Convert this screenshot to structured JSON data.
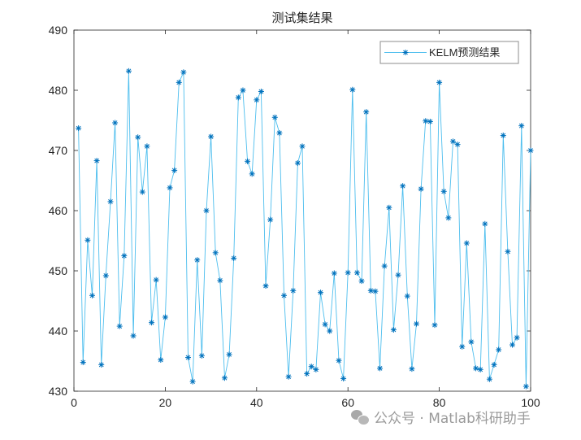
{
  "chart_data": {
    "type": "line",
    "title": "测试集结果",
    "xlabel": "",
    "ylabel": "",
    "xlim": [
      0,
      100
    ],
    "ylim": [
      430,
      490
    ],
    "xticks": [
      0,
      20,
      40,
      60,
      80,
      100
    ],
    "yticks": [
      430,
      440,
      450,
      460,
      470,
      480,
      490
    ],
    "grid": false,
    "legend_position": "northeast",
    "marker": "*",
    "line_color": "#4DBEEE",
    "marker_color": "#0072BD",
    "series": [
      {
        "name": "KELM预测结果",
        "x": [
          1,
          2,
          3,
          4,
          5,
          6,
          7,
          8,
          9,
          10,
          11,
          12,
          13,
          14,
          15,
          16,
          17,
          18,
          19,
          20,
          21,
          22,
          23,
          24,
          25,
          26,
          27,
          28,
          29,
          30,
          31,
          32,
          33,
          34,
          35,
          36,
          37,
          38,
          39,
          40,
          41,
          42,
          43,
          44,
          45,
          46,
          47,
          48,
          49,
          50,
          51,
          52,
          53,
          54,
          55,
          56,
          57,
          58,
          59,
          60,
          61,
          62,
          63,
          64,
          65,
          66,
          67,
          68,
          69,
          70,
          71,
          72,
          73,
          74,
          75,
          76,
          77,
          78,
          79,
          80,
          81,
          82,
          83,
          84,
          85,
          86,
          87,
          88,
          89,
          90,
          91,
          92,
          93,
          94,
          95,
          96,
          97,
          98,
          99,
          100
        ],
        "values": [
          473.7,
          434.8,
          455.1,
          445.9,
          468.3,
          434.4,
          449.2,
          461.5,
          474.6,
          440.8,
          452.5,
          483.2,
          439.2,
          472.2,
          463.1,
          470.7,
          441.4,
          448.5,
          435.2,
          442.3,
          463.8,
          466.7,
          481.3,
          483.0,
          435.6,
          431.6,
          451.8,
          435.9,
          460.0,
          472.3,
          453.0,
          448.4,
          432.2,
          436.1,
          452.1,
          478.8,
          480.0,
          468.2,
          466.1,
          478.4,
          479.8,
          447.5,
          458.5,
          475.5,
          472.9,
          445.9,
          432.4,
          446.7,
          467.9,
          470.7,
          432.9,
          434.1,
          433.6,
          446.4,
          441.1,
          440.0,
          449.6,
          435.1,
          432.1,
          449.7,
          480.1,
          449.7,
          448.3,
          476.4,
          446.7,
          446.6,
          433.8,
          450.8,
          460.5,
          440.2,
          449.3,
          464.1,
          445.8,
          433.7,
          441.2,
          463.6,
          474.9,
          474.8,
          441.0,
          481.3,
          463.2,
          458.8,
          471.5,
          471.0,
          437.4,
          454.6,
          438.2,
          433.8,
          433.6,
          457.8,
          432.0,
          434.4,
          436.9,
          472.5,
          453.2,
          437.7,
          438.9,
          474.1,
          430.8,
          470.0
        ]
      }
    ]
  },
  "watermark": {
    "icon": "wechat-icon",
    "text": "公众号 · Matlab科研助手"
  }
}
